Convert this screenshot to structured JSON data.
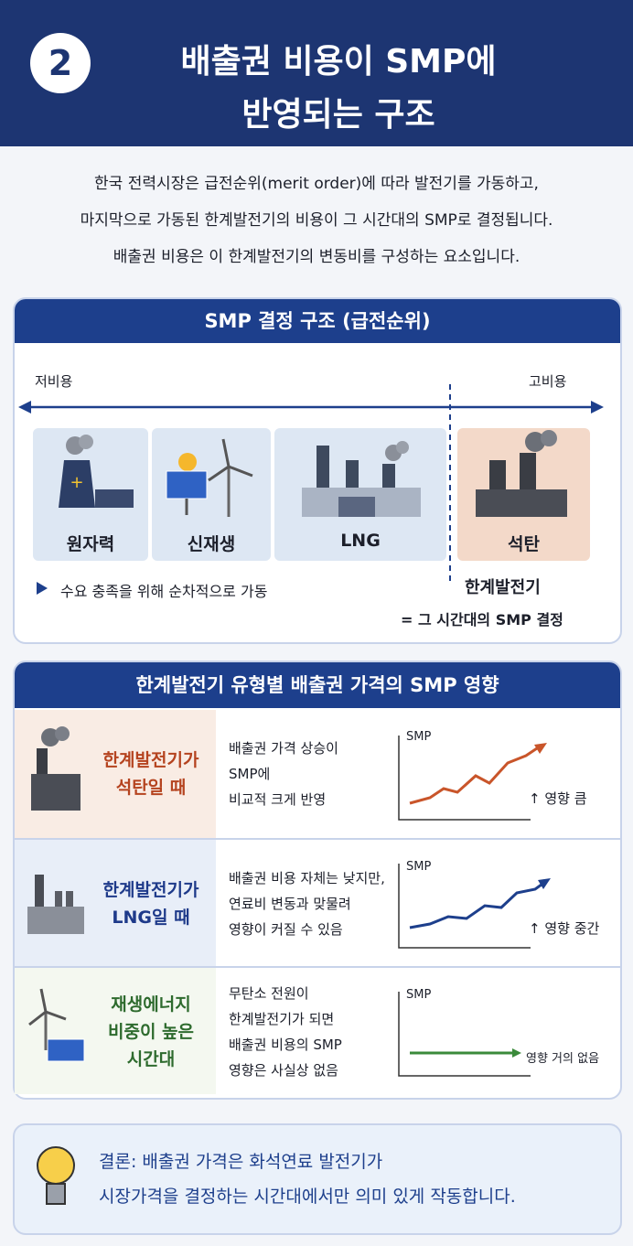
{
  "header": {
    "number": "2",
    "title_line1": "배출권 비용이 SMP에",
    "title_line2": "반영되는 구조"
  },
  "intro": [
    "한국 전력시장은 급전순위(merit order)에 따라 발전기를 가동하고,",
    "마지막으로 가동된 한계발전기의 비용이 그 시간대의 SMP로 결정됩니다.",
    "배출권 비용은 이 한계발전기의 변동비를 구성하는 요소입니다."
  ],
  "merit": {
    "title": "SMP 결정 구조 (급전순위)",
    "low": "저비용",
    "high": "고비용",
    "plants": [
      "원자력",
      "신재생",
      "LNG",
      "석탄"
    ],
    "note": "수요 충족을 위해 순차적으로 가동",
    "marginal": "한계발전기",
    "marginal_note": "= 그 시간대의 SMP 결정"
  },
  "impact": {
    "title": "한계발전기 유형별 배출권 가격의 SMP 영향",
    "rows": [
      {
        "label": [
          "한계발전기가",
          "석탄일 때"
        ],
        "desc": [
          "배출권 가격 상승이",
          "SMP에",
          "비교적 크게 반영"
        ],
        "axis": "SMP",
        "effect": "↑ 영향 큼"
      },
      {
        "label": [
          "한계발전기가",
          "LNG일 때"
        ],
        "desc": [
          "배출권 비용 자체는 낮지만,",
          "연료비 변동과 맞물려",
          "영향이 커질 수 있음"
        ],
        "axis": "SMP",
        "effect": "↑ 영향 중간"
      },
      {
        "label": [
          "재생에너지",
          "비중이 높은",
          "시간대"
        ],
        "desc": [
          "무탄소 전원이",
          "한계발전기가 되면",
          "배출권 비용의 SMP",
          "영향은 사실상 없음"
        ],
        "axis": "SMP",
        "effect": "영향 거의 없음"
      }
    ]
  },
  "conclusion": {
    "lines": [
      "결론: 배출권 가격은 화석연료 발전기가",
      "시장가격을 결정하는 시간대에서만 의미 있게 작동합니다."
    ]
  }
}
